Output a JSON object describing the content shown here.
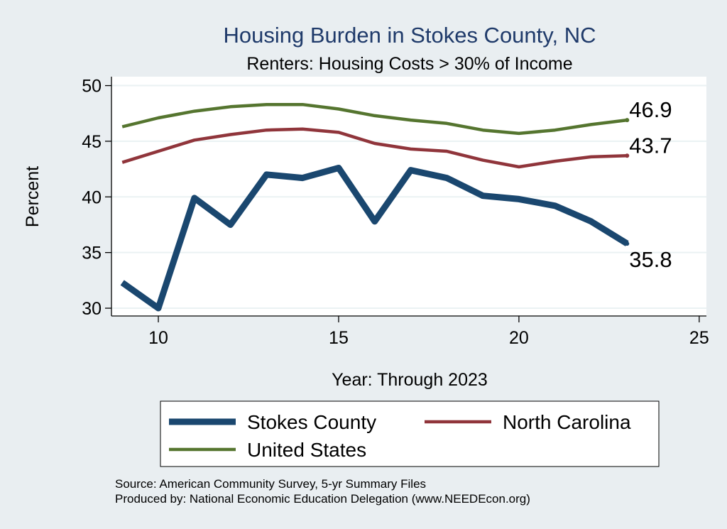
{
  "chart_data": {
    "type": "line",
    "title": "Housing Burden in Stokes County, NC",
    "subtitle": "Renters: Housing Costs > 30% of Income",
    "xlabel": "Year: Through 2023",
    "ylabel": "Percent",
    "xlim": [
      8.7,
      25.2
    ],
    "ylim": [
      29.3,
      50.8
    ],
    "x_ticks": [
      10,
      15,
      20,
      25
    ],
    "y_ticks": [
      30,
      35,
      40,
      45,
      50
    ],
    "grid": true,
    "x": [
      9,
      10,
      11,
      12,
      13,
      14,
      15,
      16,
      17,
      18,
      19,
      20,
      21,
      22,
      23
    ],
    "series": [
      {
        "name": "Stokes County",
        "color": "#1a476f",
        "width": 9,
        "end_label": "35.8",
        "values": [
          32.3,
          30.0,
          39.9,
          37.5,
          42.0,
          41.7,
          42.6,
          37.8,
          42.4,
          41.7,
          40.1,
          39.8,
          39.2,
          37.8,
          35.8
        ]
      },
      {
        "name": "North Carolina",
        "color": "#90353b",
        "width": 4.5,
        "end_label": "43.7",
        "values": [
          43.1,
          44.1,
          45.1,
          45.6,
          46.0,
          46.1,
          45.8,
          44.8,
          44.3,
          44.1,
          43.3,
          42.7,
          43.2,
          43.6,
          43.7
        ]
      },
      {
        "name": "United States",
        "color": "#55752f",
        "width": 4.5,
        "end_label": "46.9",
        "values": [
          46.3,
          47.1,
          47.7,
          48.1,
          48.3,
          48.3,
          47.9,
          47.3,
          46.9,
          46.6,
          46.0,
          45.7,
          46.0,
          46.5,
          46.9
        ]
      }
    ],
    "legend": {
      "placement": "bottom",
      "entries": [
        "Stokes County",
        "North Carolina",
        "United States"
      ]
    },
    "notes": [
      "Source: American Community Survey, 5-yr Summary Files",
      "Produced by: National Economic Education Delegation (www.NEEDEcon.org)"
    ]
  }
}
